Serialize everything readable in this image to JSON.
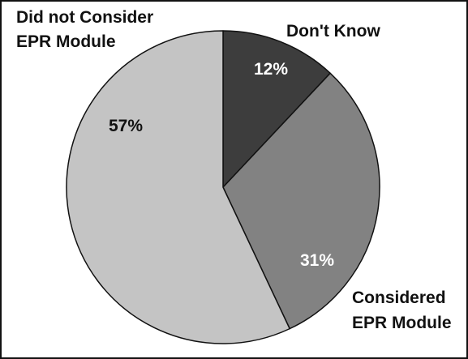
{
  "chart_data": {
    "type": "pie",
    "slices": [
      {
        "label": "Don't Know",
        "value": 12,
        "value_label": "12%",
        "color": "#3d3d3d",
        "text_color": "#ffffff"
      },
      {
        "label": "Considered EPR Module",
        "value": 31,
        "value_label": "31%",
        "color": "#828282",
        "text_color": "#ffffff"
      },
      {
        "label": "Did not Consider EPR Module",
        "value": 57,
        "value_label": "57%",
        "color": "#c4c4c4",
        "text_color": "#111111"
      }
    ],
    "category_labels": [
      {
        "slice": "Don't Know",
        "lines": [
          "Don't Know"
        ]
      },
      {
        "slice": "Considered EPR Module",
        "lines": [
          "Considered",
          "EPR Module"
        ]
      },
      {
        "slice": "Did not Consider EPR Module",
        "lines": [
          "Did not Consider",
          "EPR Module"
        ]
      }
    ],
    "start_angle": "12 o'clock",
    "direction": "clockwise",
    "outline_color": "#111111"
  }
}
